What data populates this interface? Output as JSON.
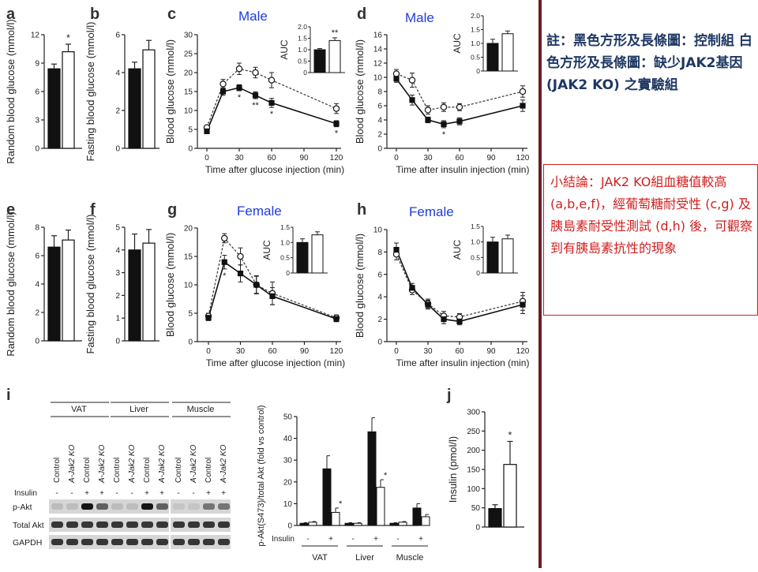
{
  "notes": {
    "legend_note": "註：黑色方形及長條圖：控制組 白色方形及長條圖：缺少JAK2基因 (JAK2 KO) 之實驗組",
    "summary_note": "小結論：JAK2 KO組血糖值較高 (a,b,e,f)，經葡萄糖耐受性 (c,g) 及胰島素耐受性測試 (d,h) 後，可觀察到有胰島素抗性的現象"
  },
  "colors": {
    "control": "#111111",
    "ko": "#ffffff",
    "overlay_text": "#1d3ce0",
    "note_blue": "#1f3864",
    "note_red": "#d11f1f",
    "divider": "#6b1e22"
  },
  "chart_data": [
    {
      "panel": "a",
      "type": "bar",
      "ylabel": "Random blood glucose (mmol/l)",
      "ylim": [
        0,
        12
      ],
      "yticks": [
        "0",
        "3",
        "6",
        "9",
        "12"
      ],
      "values": [
        8.4,
        10.2
      ],
      "errors": [
        0.5,
        0.8
      ],
      "star": "*"
    },
    {
      "panel": "b",
      "type": "bar",
      "ylabel": "Fasting blood glucose (mmol/l)",
      "ylim": [
        0,
        6
      ],
      "yticks": [
        "0",
        "2",
        "4",
        "6"
      ],
      "values": [
        4.2,
        5.2
      ],
      "errors": [
        0.35,
        0.5
      ],
      "star": ""
    },
    {
      "panel": "c",
      "type": "line",
      "overlay": "Male",
      "xlabel": "Time after glucose injection (min)",
      "ylabel": "Blood glucose (mmol/l)",
      "x": [
        0,
        15,
        30,
        45,
        60,
        120
      ],
      "xticks": [
        "0",
        "30",
        "60",
        "90",
        "120"
      ],
      "xlim": [
        0,
        120
      ],
      "ylim": [
        0,
        30
      ],
      "yticks": [
        "0",
        "5",
        "10",
        "15",
        "20",
        "25",
        "30"
      ],
      "control": [
        4.5,
        15.0,
        16.0,
        14.0,
        12.0,
        6.5
      ],
      "control_err": [
        0.5,
        1.0,
        0.8,
        0.9,
        1.2,
        0.8
      ],
      "ko": [
        5.5,
        17.0,
        21.0,
        20.0,
        18.0,
        10.5
      ],
      "ko_err": [
        0.5,
        1.2,
        1.5,
        1.4,
        2.0,
        1.3
      ],
      "stars": [
        "",
        "",
        "*",
        "**",
        "*",
        "*"
      ],
      "inset": {
        "ylabel": "AUC",
        "ylim": [
          0,
          2.0
        ],
        "yticks": [
          "0",
          "0.5",
          "1.0",
          "1.5",
          "2.0"
        ],
        "values": [
          1.0,
          1.4
        ],
        "errors": [
          0.05,
          0.12
        ],
        "star": "**"
      }
    },
    {
      "panel": "d",
      "type": "line",
      "overlay": "Male",
      "xlabel": "Time after insulin injection (min)",
      "ylabel": "Blood glucose (mmol/l)",
      "x": [
        0,
        15,
        30,
        45,
        60,
        120
      ],
      "xticks": [
        "0",
        "30",
        "60",
        "90",
        "120"
      ],
      "xlim": [
        0,
        120
      ],
      "ylim": [
        0,
        16
      ],
      "yticks": [
        "0",
        "2",
        "4",
        "6",
        "8",
        "10",
        "12",
        "14",
        "16"
      ],
      "control": [
        9.8,
        6.8,
        4.0,
        3.4,
        3.8,
        6.0
      ],
      "control_err": [
        0.5,
        0.7,
        0.4,
        0.5,
        0.5,
        0.8
      ],
      "ko": [
        10.5,
        9.6,
        5.4,
        5.8,
        5.8,
        8.0
      ],
      "ko_err": [
        0.6,
        1.0,
        0.6,
        0.6,
        0.5,
        0.8
      ],
      "stars": [
        "",
        "",
        "",
        "*",
        "",
        ""
      ],
      "inset": {
        "ylabel": "AUC",
        "ylim": [
          0,
          2.0
        ],
        "yticks": [
          "0",
          "0.5",
          "1.0",
          "1.5",
          "2.0"
        ],
        "values": [
          1.0,
          1.35
        ],
        "errors": [
          0.15,
          0.1
        ],
        "star": ""
      }
    },
    {
      "panel": "e",
      "type": "bar",
      "ylabel": "Random blood glucose (mmol/l)",
      "ylim": [
        0,
        8
      ],
      "yticks": [
        "0",
        "2",
        "4",
        "6",
        "8"
      ],
      "values": [
        6.6,
        7.1
      ],
      "errors": [
        0.8,
        0.7
      ],
      "star": ""
    },
    {
      "panel": "f",
      "type": "bar",
      "ylabel": "Fasting blood glucose (mmol/l)",
      "ylim": [
        0,
        5
      ],
      "yticks": [
        "0",
        "1",
        "2",
        "3",
        "4",
        "5"
      ],
      "values": [
        4.0,
        4.3
      ],
      "errors": [
        0.7,
        0.6
      ],
      "star": ""
    },
    {
      "panel": "g",
      "type": "line",
      "overlay": "Female",
      "xlabel": "Time after glucose injection (min)",
      "ylabel": "Blood glucose (mmol/l)",
      "x": [
        0,
        15,
        30,
        45,
        60,
        120
      ],
      "xticks": [
        "0",
        "30",
        "60",
        "90",
        "120"
      ],
      "xlim": [
        0,
        120
      ],
      "ylim": [
        0,
        20
      ],
      "yticks": [
        "0",
        "5",
        "10",
        "15",
        "20"
      ],
      "control": [
        4.2,
        14.0,
        12.0,
        10.0,
        8.0,
        4.0
      ],
      "control_err": [
        0.5,
        1.2,
        1.5,
        1.5,
        1.5,
        0.5
      ],
      "ko": [
        4.5,
        18.2,
        15.0,
        10.0,
        8.5,
        4.2
      ],
      "ko_err": [
        0.5,
        0.8,
        1.5,
        1.6,
        2.0,
        0.5
      ],
      "stars": [
        "",
        "*",
        "",
        "",
        "",
        ""
      ],
      "inset": {
        "ylabel": "AUC",
        "ylim": [
          0,
          1.5
        ],
        "yticks": [
          "0",
          "0.5",
          "1.0",
          "1.5"
        ],
        "values": [
          1.0,
          1.25
        ],
        "errors": [
          0.12,
          0.1
        ],
        "star": ""
      }
    },
    {
      "panel": "h",
      "type": "line",
      "overlay": "Female",
      "xlabel": "Time after insulin injection (min)",
      "ylabel": "Blood glucose (mmol/l)",
      "x": [
        0,
        15,
        30,
        45,
        60,
        120
      ],
      "xticks": [
        "0",
        "30",
        "60",
        "90",
        "120"
      ],
      "xlim": [
        0,
        120
      ],
      "ylim": [
        0,
        10
      ],
      "yticks": [
        "0",
        "2",
        "4",
        "6",
        "8",
        "10"
      ],
      "control": [
        8.2,
        4.8,
        3.3,
        2.0,
        1.8,
        3.3
      ],
      "control_err": [
        0.6,
        0.4,
        0.4,
        0.4,
        0.3,
        0.8
      ],
      "ko": [
        7.8,
        4.6,
        3.4,
        2.3,
        2.2,
        3.6
      ],
      "ko_err": [
        0.5,
        0.4,
        0.4,
        0.4,
        0.3,
        0.8
      ],
      "stars": [
        "",
        "",
        "",
        "",
        "",
        ""
      ],
      "inset": {
        "ylabel": "AUC",
        "ylim": [
          0,
          1.5
        ],
        "yticks": [
          "0",
          "0.5",
          "1.0",
          "1.5"
        ],
        "values": [
          1.0,
          1.1
        ],
        "errors": [
          0.15,
          0.12
        ],
        "star": ""
      }
    },
    {
      "panel": "i",
      "type": "bar",
      "ylabel": "p-Akt(S473)/total Akt (fold vs control)",
      "ylim": [
        0,
        50
      ],
      "yticks": [
        "0",
        "10",
        "20",
        "30",
        "40",
        "50"
      ],
      "groups": [
        "VAT",
        "Liver",
        "Muscle"
      ],
      "insulin_row_label": "Insulin",
      "bars": [
        {
          "group": "VAT",
          "insulin": "-",
          "genotype": "control",
          "value": 1.0,
          "error": 0.3
        },
        {
          "group": "VAT",
          "insulin": "-",
          "genotype": "ko",
          "value": 1.5,
          "error": 0.3
        },
        {
          "group": "VAT",
          "insulin": "+",
          "genotype": "control",
          "value": 26.0,
          "error": 6.0
        },
        {
          "group": "VAT",
          "insulin": "+",
          "genotype": "ko",
          "value": 6.0,
          "error": 2.0,
          "star": "*"
        },
        {
          "group": "Liver",
          "insulin": "-",
          "genotype": "control",
          "value": 1.0,
          "error": 0.3
        },
        {
          "group": "Liver",
          "insulin": "-",
          "genotype": "ko",
          "value": 1.0,
          "error": 0.3
        },
        {
          "group": "Liver",
          "insulin": "+",
          "genotype": "control",
          "value": 43.0,
          "error": 6.5
        },
        {
          "group": "Liver",
          "insulin": "+",
          "genotype": "ko",
          "value": 17.5,
          "error": 3.5,
          "star": "*"
        },
        {
          "group": "Muscle",
          "insulin": "-",
          "genotype": "control",
          "value": 1.0,
          "error": 0.3
        },
        {
          "group": "Muscle",
          "insulin": "-",
          "genotype": "ko",
          "value": 1.5,
          "error": 0.3
        },
        {
          "group": "Muscle",
          "insulin": "+",
          "genotype": "control",
          "value": 8.0,
          "error": 2.0
        },
        {
          "group": "Muscle",
          "insulin": "+",
          "genotype": "ko",
          "value": 4.0,
          "error": 1.0
        }
      ]
    },
    {
      "panel": "j",
      "type": "bar",
      "ylabel": "Insulin (pmol/l)",
      "ylim": [
        0,
        300
      ],
      "yticks": [
        "0",
        "50",
        "100",
        "150",
        "200",
        "250",
        "300"
      ],
      "values": [
        48,
        163
      ],
      "errors": [
        10,
        60
      ],
      "star": "*"
    }
  ],
  "western_blot": {
    "tissues": [
      "VAT",
      "Liver",
      "Muscle"
    ],
    "lane_labels": [
      "Control",
      "A-Jak2 KO",
      "Control",
      "A-Jak2 KO"
    ],
    "insulin_row_label": "Insulin",
    "insulin_signs": [
      "-",
      "-",
      "+",
      "+"
    ],
    "row_labels": [
      "p-Akt",
      "Total Akt",
      "GAPDH"
    ]
  }
}
